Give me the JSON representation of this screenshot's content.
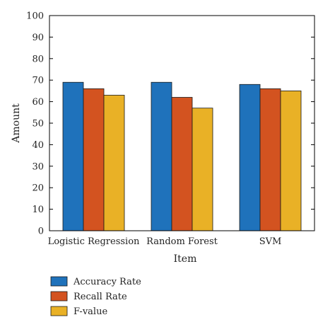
{
  "chart_data": {
    "type": "bar",
    "categories": [
      "Logistic Regression",
      "Random Forest",
      "SVM"
    ],
    "series": [
      {
        "name": "Accuracy Rate",
        "values": [
          69,
          69,
          68
        ],
        "color": "#1f72bb"
      },
      {
        "name": "Recall Rate",
        "values": [
          66,
          62,
          66
        ],
        "color": "#d35320"
      },
      {
        "name": "F-value",
        "values": [
          63,
          57,
          65
        ],
        "color": "#e9b126"
      }
    ],
    "title": "",
    "xlabel": "Item",
    "ylabel": "Amount",
    "ylim": [
      0,
      100
    ],
    "yticks": [
      0,
      10,
      20,
      30,
      40,
      50,
      60,
      70,
      80,
      90,
      100
    ],
    "grid": false,
    "legend_position": "bottom-left"
  }
}
